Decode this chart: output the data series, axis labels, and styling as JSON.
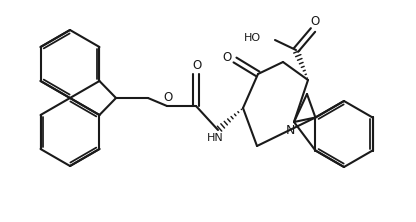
{
  "bg": "#ffffff",
  "lc": "#1a1a1a",
  "lw": 1.5,
  "figsize": [
    4.16,
    2.22
  ],
  "dpi": 100,
  "xlim": [
    0,
    416
  ],
  "ylim": [
    0,
    222
  ]
}
